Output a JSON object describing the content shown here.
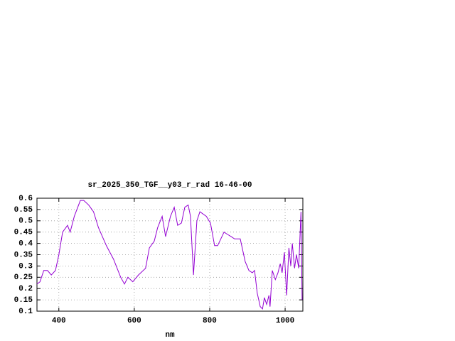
{
  "chart_data": {
    "type": "line",
    "title": "sr_2025_350_TGF__y03_r_rad 16-46-00",
    "x_label": "nm",
    "x": [
      342,
      350,
      360,
      370,
      380,
      391,
      400,
      410,
      423,
      430,
      441,
      457,
      466,
      479,
      492,
      505,
      526,
      545,
      564,
      574,
      583,
      596,
      611,
      630,
      640,
      653,
      662,
      674,
      683,
      696,
      706,
      715,
      725,
      734,
      743,
      749,
      757,
      766,
      774,
      791,
      802,
      813,
      821,
      838,
      847,
      857,
      866,
      881,
      894,
      904,
      913,
      919,
      926,
      934,
      940,
      945,
      951,
      957,
      960,
      966,
      974,
      981,
      987,
      992,
      998,
      1004,
      1010,
      1015,
      1019,
      1025,
      1030,
      1036,
      1042,
      1045
    ],
    "series": [
      {
        "name": "sr_2025_350_TGF__y03_r_rad",
        "color": "#9400d3",
        "values": [
          0.22,
          0.23,
          0.28,
          0.28,
          0.26,
          0.28,
          0.35,
          0.45,
          0.48,
          0.45,
          0.52,
          0.59,
          0.59,
          0.57,
          0.54,
          0.47,
          0.39,
          0.33,
          0.25,
          0.22,
          0.25,
          0.23,
          0.26,
          0.29,
          0.38,
          0.41,
          0.47,
          0.52,
          0.43,
          0.52,
          0.56,
          0.48,
          0.49,
          0.56,
          0.57,
          0.52,
          0.26,
          0.5,
          0.54,
          0.52,
          0.49,
          0.39,
          0.39,
          0.45,
          0.44,
          0.43,
          0.42,
          0.42,
          0.32,
          0.28,
          0.27,
          0.28,
          0.18,
          0.12,
          0.11,
          0.16,
          0.13,
          0.17,
          0.12,
          0.28,
          0.24,
          0.27,
          0.31,
          0.27,
          0.36,
          0.17,
          0.38,
          0.3,
          0.4,
          0.29,
          0.35,
          0.29,
          0.54,
          0.15
        ]
      }
    ],
    "xlim": [
      342,
      1047
    ],
    "xticks": [
      400,
      600,
      800,
      1000
    ],
    "ylim": [
      0.1,
      0.6
    ],
    "yticks": [
      0.1,
      0.15,
      0.2,
      0.25,
      0.3,
      0.35,
      0.4,
      0.45,
      0.5,
      0.55,
      0.6
    ],
    "grid": true
  }
}
